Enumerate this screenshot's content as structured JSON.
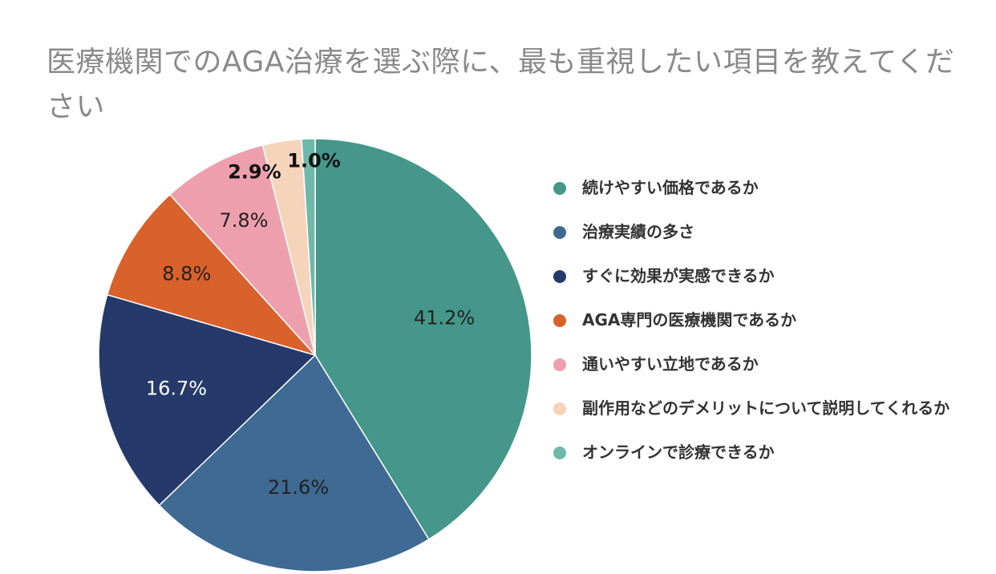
{
  "chart_data": {
    "type": "pie",
    "title": "医療機関でのAGA治療を選ぶ際に、最も重視したい項目を教えてください",
    "slices": [
      {
        "label": "続けやすい価格であるか",
        "value": 41.2,
        "display": "41.2%",
        "color": "#44978a",
        "label_color": "#222222"
      },
      {
        "label": "治療実績の多さ",
        "value": 21.6,
        "display": "21.6%",
        "color": "#3e6a93",
        "label_color": "#222222"
      },
      {
        "label": "すぐに効果が実感できるか",
        "value": 16.7,
        "display": "16.7%",
        "color": "#253a6a",
        "label_color": "#ffffff"
      },
      {
        "label": "AGA専門の医療機関であるか",
        "value": 8.8,
        "display": "8.8%",
        "color": "#d9612b",
        "label_color": "#222222"
      },
      {
        "label": "通いやすい立地であるか",
        "value": 7.8,
        "display": "7.8%",
        "color": "#ee9fad",
        "label_color": "#222222"
      },
      {
        "label": "副作用などのデメリットについて説明してくれるか",
        "value": 2.9,
        "display": "2.9%",
        "color": "#f6d3bb",
        "label_color": "#111111"
      },
      {
        "label": "オンラインで診療できるか",
        "value": 1.0,
        "display": "1.0%",
        "color": "#6fb8aa",
        "label_color": "#111111"
      }
    ],
    "legend_position": "right"
  }
}
